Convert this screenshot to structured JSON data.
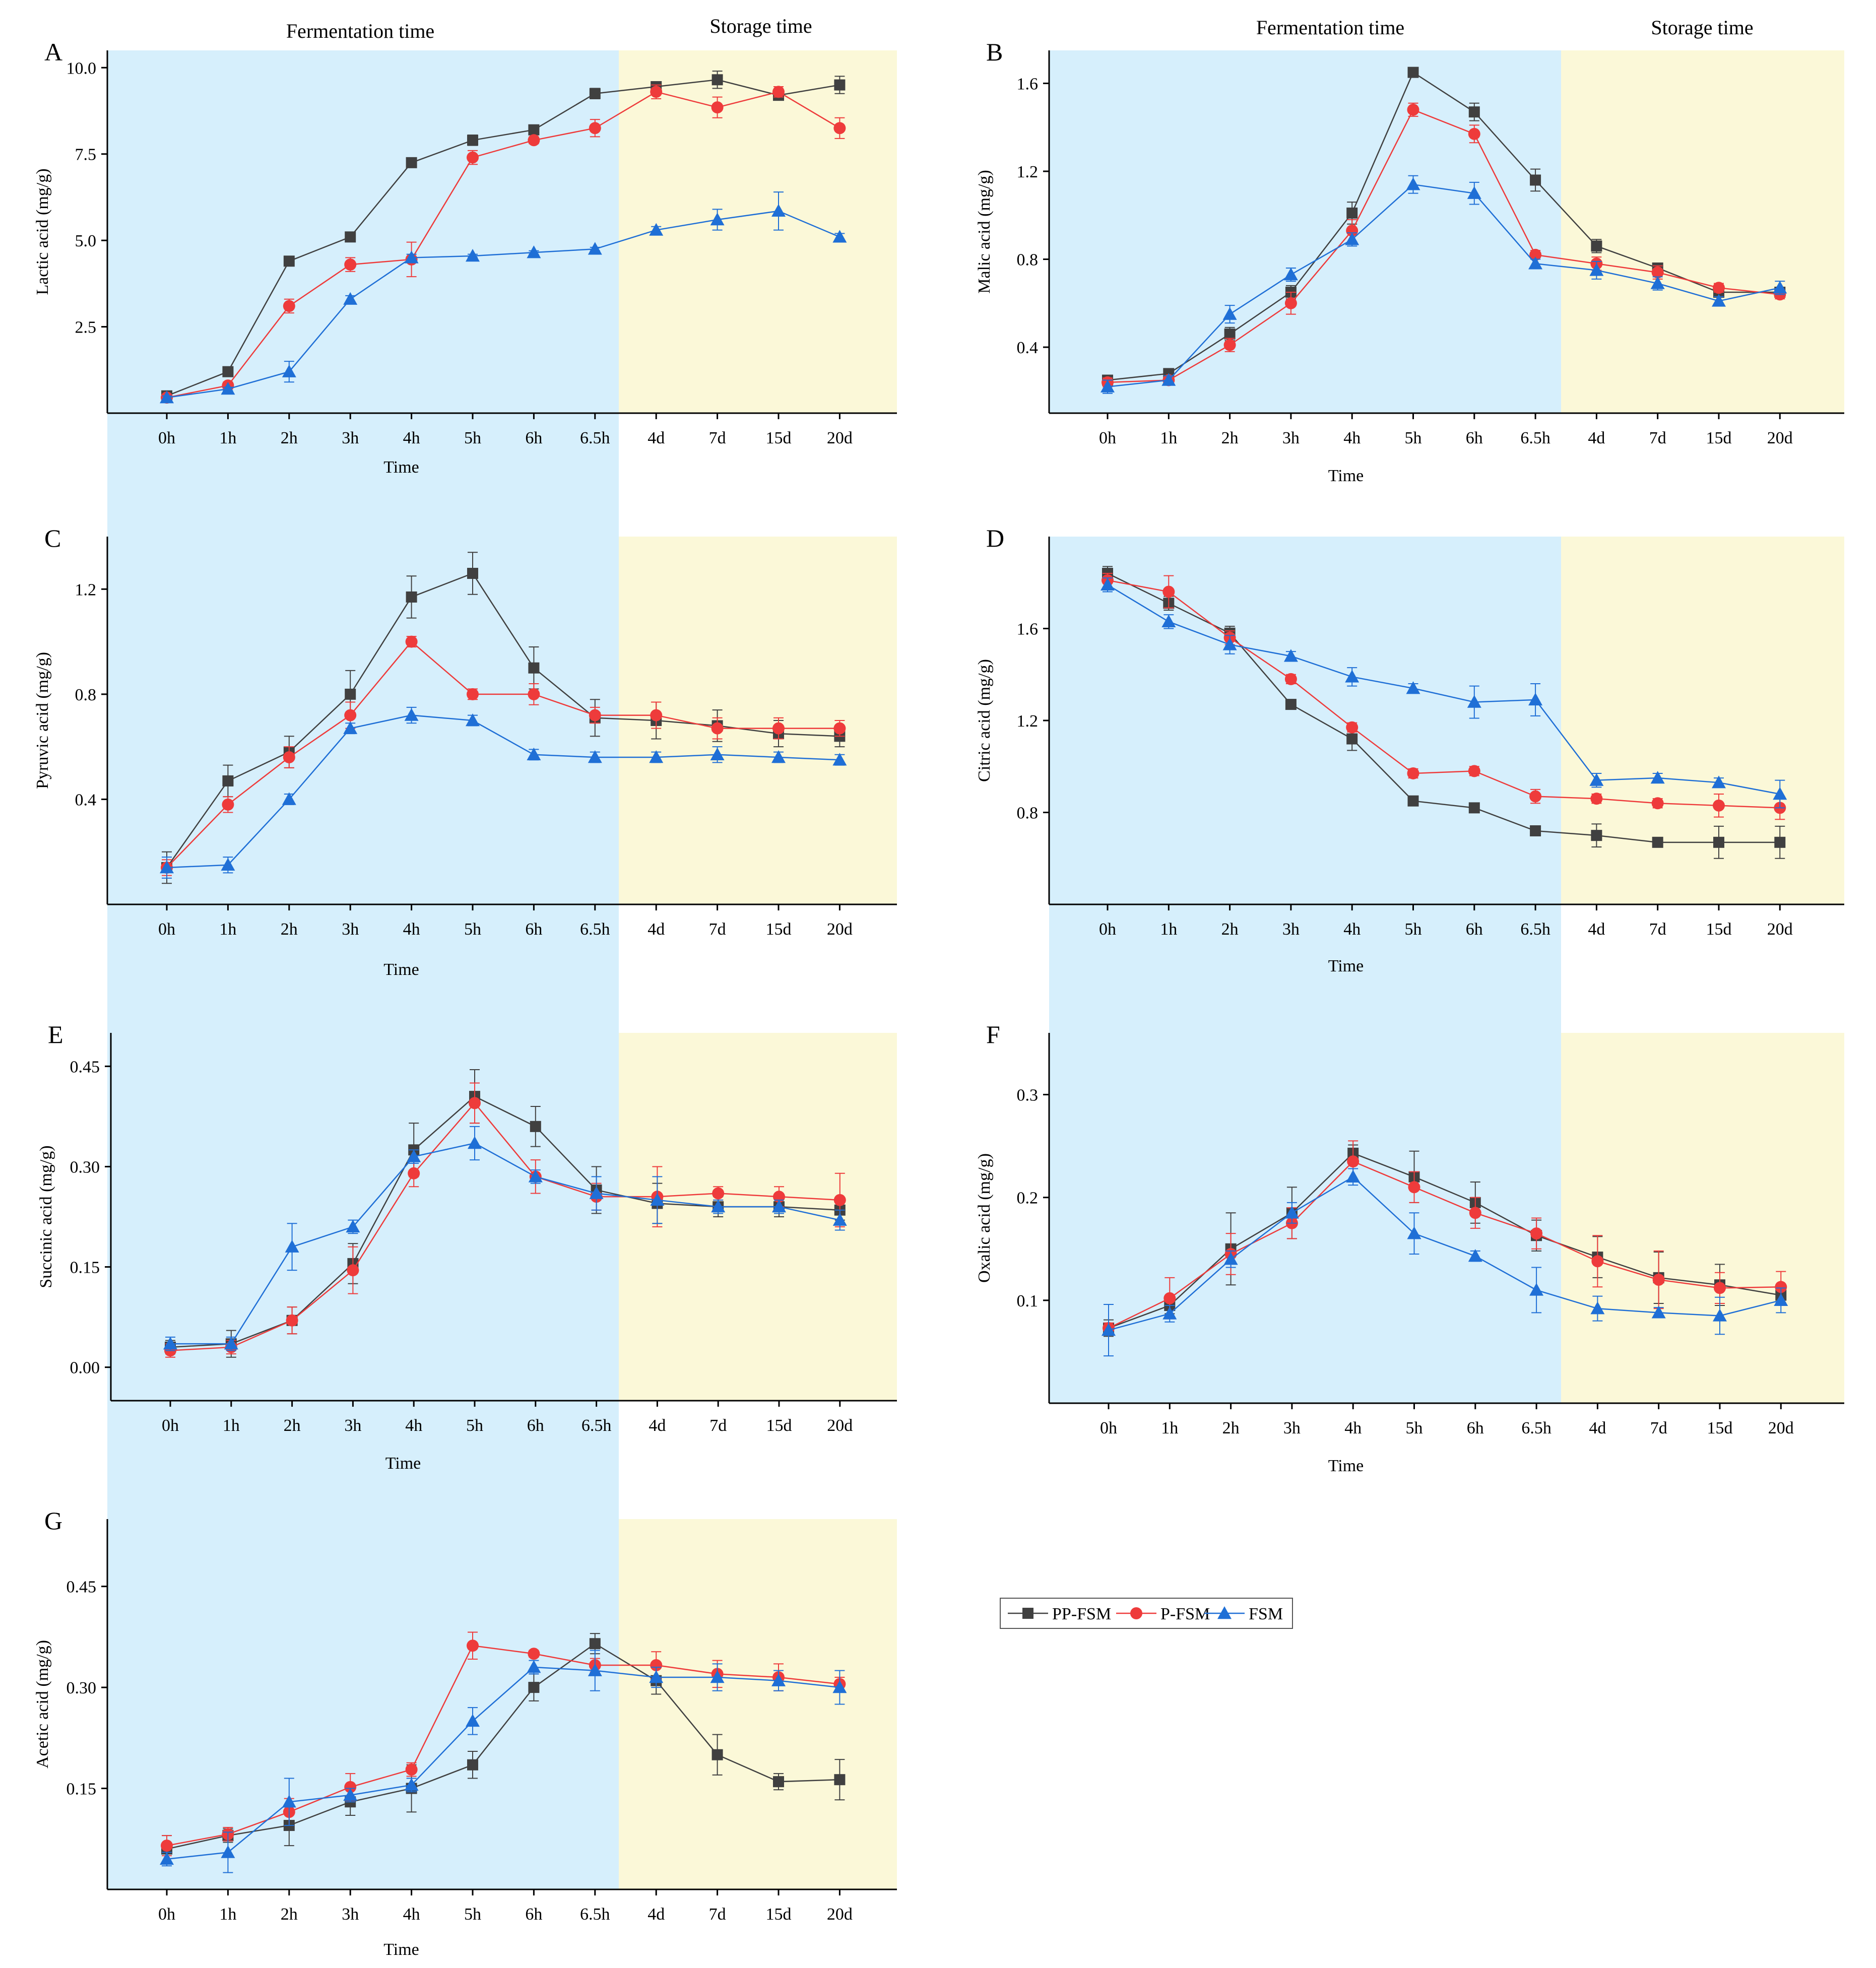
{
  "figure": {
    "section_labels": {
      "fermentation": "Fermentation time",
      "storage": "Storage time"
    },
    "colors": {
      "fermentation_bg": "#d6effc",
      "storage_bg": "#fbf8d8",
      "PP-FSM": "#404040",
      "P-FSM": "#ee3b3b",
      "FSM": "#1f6fd6"
    },
    "legend": [
      {
        "name": "PP-FSM",
        "marker": "square"
      },
      {
        "name": "P-FSM",
        "marker": "circle"
      },
      {
        "name": "FSM",
        "marker": "triangle"
      }
    ]
  },
  "chart_data": [
    {
      "id": "A",
      "type": "line",
      "xlabel": "Time",
      "ylabel": "Lactic acid (mg/g)",
      "categories": [
        "0h",
        "1h",
        "2h",
        "3h",
        "4h",
        "5h",
        "6h",
        "6.5h",
        "4d",
        "7d",
        "15d",
        "20d"
      ],
      "ylim": [
        0,
        10.5
      ],
      "yticks": [
        2.5,
        5.0,
        7.5,
        10.0
      ],
      "tick_decimals": 1,
      "series": [
        {
          "name": "PP-FSM",
          "values": [
            0.5,
            1.2,
            4.4,
            5.1,
            7.25,
            7.9,
            8.2,
            9.25,
            9.45,
            9.65,
            9.2,
            9.5
          ],
          "errors": [
            0.05,
            0.1,
            0.1,
            0.1,
            0.1,
            0.15,
            0.1,
            0.15,
            0.1,
            0.25,
            0.1,
            0.25
          ]
        },
        {
          "name": "P-FSM",
          "values": [
            0.45,
            0.8,
            3.1,
            4.3,
            4.45,
            7.4,
            7.9,
            8.25,
            9.3,
            8.85,
            9.3,
            8.25
          ],
          "errors": [
            0.05,
            0.1,
            0.2,
            0.2,
            0.5,
            0.2,
            0.1,
            0.25,
            0.2,
            0.3,
            0.15,
            0.3
          ]
        },
        {
          "name": "FSM",
          "values": [
            0.45,
            0.7,
            1.2,
            3.3,
            4.5,
            4.55,
            4.65,
            4.75,
            5.3,
            5.6,
            5.85,
            5.1
          ],
          "errors": [
            0.05,
            0.05,
            0.3,
            0.1,
            0.1,
            0.05,
            0.05,
            0.05,
            0.1,
            0.3,
            0.55,
            0.1
          ]
        }
      ]
    },
    {
      "id": "B",
      "type": "line",
      "xlabel": "Time",
      "ylabel": "Malic acid (mg/g)",
      "categories": [
        "0h",
        "1h",
        "2h",
        "3h",
        "4h",
        "5h",
        "6h",
        "6.5h",
        "4d",
        "7d",
        "15d",
        "20d"
      ],
      "ylim": [
        0.1,
        1.75
      ],
      "yticks": [
        0.4,
        0.8,
        1.2,
        1.6
      ],
      "tick_decimals": 1,
      "series": [
        {
          "name": "PP-FSM",
          "values": [
            0.25,
            0.28,
            0.46,
            0.65,
            1.01,
            1.65,
            1.47,
            1.16,
            0.86,
            0.76,
            0.65,
            0.65
          ],
          "errors": [
            0.02,
            0.02,
            0.03,
            0.03,
            0.05,
            0.02,
            0.04,
            0.05,
            0.03,
            0.02,
            0.02,
            0.02
          ]
        },
        {
          "name": "P-FSM",
          "values": [
            0.24,
            0.25,
            0.41,
            0.6,
            0.93,
            1.48,
            1.37,
            0.82,
            0.78,
            0.74,
            0.67,
            0.64
          ],
          "errors": [
            0.02,
            0.02,
            0.03,
            0.05,
            0.05,
            0.03,
            0.04,
            0.02,
            0.03,
            0.03,
            0.02,
            0.02
          ]
        },
        {
          "name": "FSM",
          "values": [
            0.22,
            0.25,
            0.55,
            0.73,
            0.89,
            1.14,
            1.1,
            0.78,
            0.75,
            0.69,
            0.61,
            0.67
          ],
          "errors": [
            0.03,
            0.02,
            0.04,
            0.03,
            0.03,
            0.04,
            0.05,
            0.02,
            0.04,
            0.03,
            0.02,
            0.03
          ]
        }
      ]
    },
    {
      "id": "C",
      "type": "line",
      "xlabel": "Time",
      "ylabel": "Pyruvic acid (mg/g)",
      "categories": [
        "0h",
        "1h",
        "2h",
        "3h",
        "4h",
        "5h",
        "6h",
        "6.5h",
        "4d",
        "7d",
        "15d",
        "20d"
      ],
      "ylim": [
        0.0,
        1.4
      ],
      "yticks": [
        0.4,
        0.8,
        1.2
      ],
      "tick_decimals": 1,
      "series": [
        {
          "name": "PP-FSM",
          "values": [
            0.14,
            0.47,
            0.58,
            0.8,
            1.17,
            1.26,
            0.9,
            0.71,
            0.7,
            0.68,
            0.65,
            0.64
          ],
          "errors": [
            0.06,
            0.06,
            0.06,
            0.09,
            0.08,
            0.08,
            0.08,
            0.07,
            0.07,
            0.06,
            0.05,
            0.04
          ]
        },
        {
          "name": "P-FSM",
          "values": [
            0.14,
            0.38,
            0.56,
            0.72,
            1.0,
            0.8,
            0.8,
            0.72,
            0.72,
            0.67,
            0.67,
            0.67
          ],
          "errors": [
            0.03,
            0.03,
            0.04,
            0.05,
            0.02,
            0.02,
            0.04,
            0.03,
            0.05,
            0.04,
            0.04,
            0.03
          ]
        },
        {
          "name": "FSM",
          "values": [
            0.14,
            0.15,
            0.4,
            0.67,
            0.72,
            0.7,
            0.57,
            0.56,
            0.56,
            0.57,
            0.56,
            0.55
          ],
          "errors": [
            0.04,
            0.03,
            0.02,
            0.02,
            0.03,
            0.02,
            0.02,
            0.02,
            0.02,
            0.03,
            0.02,
            0.02
          ]
        }
      ]
    },
    {
      "id": "D",
      "type": "line",
      "xlabel": "Time",
      "ylabel": "Citric acid (mg/g)",
      "categories": [
        "0h",
        "1h",
        "2h",
        "3h",
        "4h",
        "5h",
        "6h",
        "6.5h",
        "4d",
        "7d",
        "15d",
        "20d"
      ],
      "ylim": [
        0.4,
        2.0
      ],
      "yticks": [
        0.8,
        1.2,
        1.6
      ],
      "tick_decimals": 1,
      "series": [
        {
          "name": "PP-FSM",
          "values": [
            1.84,
            1.71,
            1.58,
            1.27,
            1.12,
            0.85,
            0.82,
            0.72,
            0.7,
            0.67,
            0.67,
            0.67
          ],
          "errors": [
            0.03,
            0.03,
            0.03,
            0.02,
            0.05,
            0.02,
            0.02,
            0.02,
            0.05,
            0.02,
            0.07,
            0.07
          ]
        },
        {
          "name": "P-FSM",
          "values": [
            1.81,
            1.76,
            1.56,
            1.38,
            1.17,
            0.97,
            0.98,
            0.87,
            0.86,
            0.84,
            0.83,
            0.82
          ],
          "errors": [
            0.03,
            0.07,
            0.03,
            0.02,
            0.02,
            0.02,
            0.02,
            0.03,
            0.02,
            0.02,
            0.05,
            0.05
          ]
        },
        {
          "name": "FSM",
          "values": [
            1.79,
            1.63,
            1.53,
            1.48,
            1.39,
            1.34,
            1.28,
            1.29,
            0.94,
            0.95,
            0.93,
            0.88
          ],
          "errors": [
            0.03,
            0.03,
            0.04,
            0.02,
            0.04,
            0.02,
            0.07,
            0.07,
            0.03,
            0.02,
            0.02,
            0.06
          ]
        }
      ]
    },
    {
      "id": "E",
      "type": "line",
      "xlabel": "Time",
      "ylabel": "Succinic acid (mg/g)",
      "categories": [
        "0h",
        "1h",
        "2h",
        "3h",
        "4h",
        "5h",
        "6h",
        "6.5h",
        "4d",
        "7d",
        "15d",
        "20d"
      ],
      "ylim": [
        -0.05,
        0.5
      ],
      "yticks": [
        0.0,
        0.15,
        0.3,
        0.45
      ],
      "tick_decimals": 2,
      "series": [
        {
          "name": "PP-FSM",
          "values": [
            0.03,
            0.035,
            0.07,
            0.155,
            0.325,
            0.405,
            0.36,
            0.265,
            0.245,
            0.24,
            0.24,
            0.235
          ],
          "errors": [
            0.01,
            0.02,
            0.02,
            0.03,
            0.04,
            0.04,
            0.03,
            0.035,
            0.03,
            0.015,
            0.015,
            0.015
          ]
        },
        {
          "name": "P-FSM",
          "values": [
            0.025,
            0.03,
            0.07,
            0.145,
            0.29,
            0.395,
            0.285,
            0.255,
            0.255,
            0.26,
            0.255,
            0.25
          ],
          "errors": [
            0.01,
            0.01,
            0.02,
            0.035,
            0.02,
            0.03,
            0.025,
            0.02,
            0.045,
            0.01,
            0.015,
            0.04
          ]
        },
        {
          "name": "FSM",
          "values": [
            0.035,
            0.035,
            0.18,
            0.21,
            0.315,
            0.335,
            0.285,
            0.26,
            0.25,
            0.24,
            0.24,
            0.22
          ],
          "errors": [
            0.01,
            0.01,
            0.035,
            0.01,
            0.01,
            0.025,
            0.01,
            0.025,
            0.035,
            0.01,
            0.01,
            0.015
          ]
        }
      ]
    },
    {
      "id": "F",
      "type": "line",
      "xlabel": "Time",
      "ylabel": "Oxalic acid (mg/g)",
      "categories": [
        "0h",
        "1h",
        "2h",
        "3h",
        "4h",
        "5h",
        "6h",
        "6.5h",
        "4d",
        "7d",
        "15d",
        "20d"
      ],
      "ylim": [
        0.0,
        0.36
      ],
      "yticks": [
        0.1,
        0.2,
        0.3
      ],
      "tick_decimals": 1,
      "series": [
        {
          "name": "PP-FSM",
          "values": [
            0.073,
            0.095,
            0.15,
            0.185,
            0.243,
            0.22,
            0.195,
            0.163,
            0.142,
            0.122,
            0.115,
            0.105
          ],
          "errors": [
            0.008,
            0.008,
            0.035,
            0.025,
            0.008,
            0.025,
            0.02,
            0.015,
            0.02,
            0.025,
            0.02,
            0.01
          ]
        },
        {
          "name": "P-FSM",
          "values": [
            0.073,
            0.102,
            0.145,
            0.175,
            0.235,
            0.21,
            0.185,
            0.165,
            0.138,
            0.12,
            0.112,
            0.113
          ],
          "errors": [
            0.005,
            0.02,
            0.02,
            0.015,
            0.02,
            0.015,
            0.015,
            0.015,
            0.025,
            0.028,
            0.015,
            0.015
          ]
        },
        {
          "name": "FSM",
          "values": [
            0.071,
            0.087,
            0.14,
            0.185,
            0.22,
            0.165,
            0.143,
            0.11,
            0.092,
            0.088,
            0.085,
            0.1
          ],
          "errors": [
            0.025,
            0.008,
            0.008,
            0.01,
            0.008,
            0.02,
            0.005,
            0.022,
            0.012,
            0.005,
            0.018,
            0.012
          ]
        }
      ]
    },
    {
      "id": "G",
      "type": "line",
      "xlabel": "Time",
      "ylabel": "Acetic acid (mg/g)",
      "categories": [
        "0h",
        "1h",
        "2h",
        "3h",
        "4h",
        "5h",
        "6h",
        "6.5h",
        "4d",
        "7d",
        "15d",
        "20d"
      ],
      "ylim": [
        0.0,
        0.55
      ],
      "yticks": [
        0.15,
        0.3,
        0.45
      ],
      "tick_decimals": 2,
      "series": [
        {
          "name": "PP-FSM",
          "values": [
            0.06,
            0.08,
            0.095,
            0.13,
            0.15,
            0.185,
            0.3,
            0.365,
            0.31,
            0.2,
            0.16,
            0.163
          ],
          "errors": [
            0.02,
            0.01,
            0.03,
            0.02,
            0.035,
            0.02,
            0.02,
            0.015,
            0.02,
            0.03,
            0.012,
            0.03
          ]
        },
        {
          "name": "P-FSM",
          "values": [
            0.065,
            0.082,
            0.115,
            0.152,
            0.178,
            0.362,
            0.35,
            0.333,
            0.333,
            0.32,
            0.315,
            0.305
          ],
          "errors": [
            0.015,
            0.01,
            0.02,
            0.02,
            0.01,
            0.02,
            0.005,
            0.01,
            0.02,
            0.02,
            0.02,
            0.01
          ]
        },
        {
          "name": "FSM",
          "values": [
            0.045,
            0.055,
            0.13,
            0.14,
            0.155,
            0.25,
            0.33,
            0.325,
            0.315,
            0.315,
            0.31,
            0.3
          ],
          "errors": [
            0.01,
            0.03,
            0.035,
            0.01,
            0.01,
            0.02,
            0.01,
            0.03,
            0.015,
            0.02,
            0.015,
            0.025
          ]
        }
      ]
    }
  ]
}
